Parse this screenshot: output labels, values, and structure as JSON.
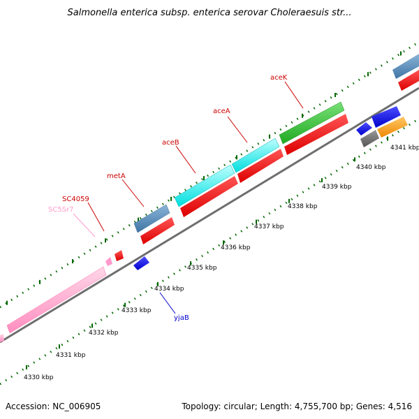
{
  "title": "Salmonella enterica subsp. enterica serovar Choleraesuis str...",
  "accession_label": "Accession: NC_006905",
  "topology_label": "Topology: circular; Length: 4,755,700 bp; Genes: 4,516",
  "ticks": [
    "4330 kbp",
    "4331 kbp",
    "4332 kbp",
    "4333 kbp",
    "4334 kbp",
    "4335 kbp",
    "4336 kbp",
    "4337 kbp",
    "4338 kbp",
    "4339 kbp",
    "4340 kbp",
    "4341 kbp"
  ],
  "gene_labels": [
    {
      "name": "SC5Sr7",
      "color": "#ff99cc"
    },
    {
      "name": "SC4059",
      "color": "#cc0000"
    },
    {
      "name": "metA",
      "color": "#cc0000"
    },
    {
      "name": "aceB",
      "color": "#cc0000"
    },
    {
      "name": "aceA",
      "color": "#cc0000"
    },
    {
      "name": "aceK",
      "color": "#cc0000"
    },
    {
      "name": "yjaB",
      "color": "#0000cc"
    }
  ],
  "colors": {
    "backbone": "#808080",
    "tick_marks": "#006600",
    "forward_rna": "#ff99cc",
    "steelblue": "#4682b4",
    "red_cds": "#ee0000",
    "cyan_cds": "#00eeee",
    "green_cds": "#33cc33",
    "blue_cds": "#0000ee",
    "orange_cds": "#ff9900",
    "gray_cds": "#666666"
  }
}
